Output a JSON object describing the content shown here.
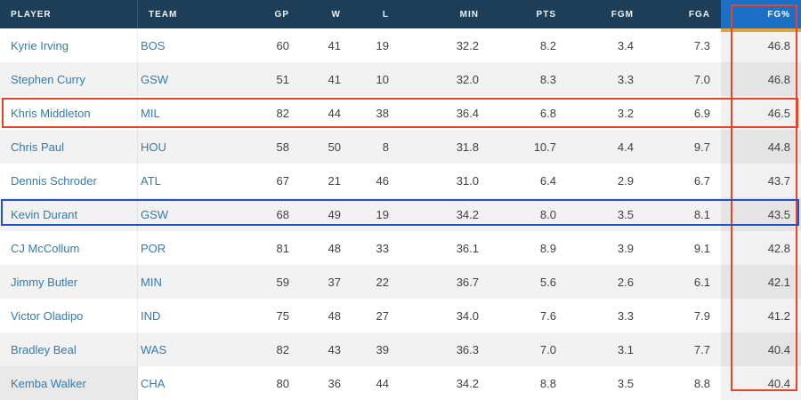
{
  "table": {
    "sorted_column": "FG%",
    "columns": [
      {
        "key": "player",
        "label": "PLAYER"
      },
      {
        "key": "team",
        "label": "TEAM"
      },
      {
        "key": "gp",
        "label": "GP"
      },
      {
        "key": "w",
        "label": "W"
      },
      {
        "key": "l",
        "label": "L"
      },
      {
        "key": "min",
        "label": "MIN"
      },
      {
        "key": "pts",
        "label": "PTS"
      },
      {
        "key": "fgm",
        "label": "FGM"
      },
      {
        "key": "fga",
        "label": "FGA"
      },
      {
        "key": "fgpct",
        "label": "FG%"
      }
    ],
    "rows": [
      [
        "Kyrie Irving",
        "BOS",
        "60",
        "41",
        "19",
        "32.2",
        "8.2",
        "3.4",
        "7.3",
        "46.8"
      ],
      [
        "Stephen Curry",
        "GSW",
        "51",
        "41",
        "10",
        "32.0",
        "8.3",
        "3.3",
        "7.0",
        "46.8"
      ],
      [
        "Khris Middleton",
        "MIL",
        "82",
        "44",
        "38",
        "36.4",
        "6.8",
        "3.2",
        "6.9",
        "46.5"
      ],
      [
        "Chris Paul",
        "HOU",
        "58",
        "50",
        "8",
        "31.8",
        "10.7",
        "4.4",
        "9.7",
        "44.8"
      ],
      [
        "Dennis Schroder",
        "ATL",
        "67",
        "21",
        "46",
        "31.0",
        "6.4",
        "2.9",
        "6.7",
        "43.7"
      ],
      [
        "Kevin Durant",
        "GSW",
        "68",
        "49",
        "19",
        "34.2",
        "8.0",
        "3.5",
        "8.1",
        "43.5"
      ],
      [
        "CJ McCollum",
        "POR",
        "81",
        "48",
        "33",
        "36.1",
        "8.9",
        "3.9",
        "9.1",
        "42.8"
      ],
      [
        "Jimmy Butler",
        "MIN",
        "59",
        "37",
        "22",
        "36.7",
        "5.6",
        "2.6",
        "6.1",
        "42.1"
      ],
      [
        "Victor Oladipo",
        "IND",
        "75",
        "48",
        "27",
        "34.0",
        "7.6",
        "3.3",
        "7.9",
        "41.2"
      ],
      [
        "Bradley Beal",
        "WAS",
        "82",
        "43",
        "39",
        "36.3",
        "7.0",
        "3.1",
        "7.7",
        "40.4"
      ],
      [
        "Kemba Walker",
        "CHA",
        "80",
        "36",
        "44",
        "34.2",
        "8.8",
        "3.5",
        "8.8",
        "40.4"
      ]
    ]
  },
  "annotations": {
    "red_row_highlight": {
      "target_player": "Khris Middleton",
      "color": "#e8432b"
    },
    "blue_row_highlight": {
      "target_player": "Kevin Durant",
      "color": "#2151c7"
    },
    "red_column_highlight": {
      "target_column": "FG%",
      "color": "#e8432b"
    }
  },
  "colors": {
    "header_background": "#1d3e59",
    "sorted_header_background": "#1b6fc4",
    "sort_underline": "#e2a33c",
    "row_stripe": "#f2f2f2",
    "link_blue": "#2d7cba",
    "number_text": "#414141"
  }
}
